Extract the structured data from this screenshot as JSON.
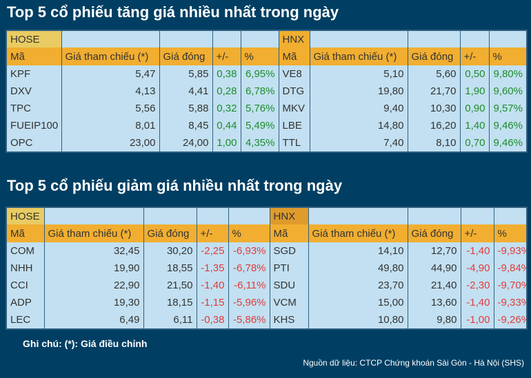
{
  "gainers": {
    "title": "Top 5 cổ phiếu tăng giá nhiều nhất trong ngày",
    "exchanges": [
      {
        "name": "HOSE",
        "headers": [
          "Mã",
          "Giá tham chiếu (*)",
          "Giá đóng",
          "+/-",
          "%"
        ],
        "rows": [
          [
            "KPF",
            "5,47",
            "5,85",
            "0,38",
            "6,95%"
          ],
          [
            "DXV",
            "4,13",
            "4,41",
            "0,28",
            "6,78%"
          ],
          [
            "TPC",
            "5,56",
            "5,88",
            "0,32",
            "5,76%"
          ],
          [
            "FUEIP100",
            "8,01",
            "8,45",
            "0,44",
            "5,49%"
          ],
          [
            "OPC",
            "23,00",
            "24,00",
            "1,00",
            "4,35%"
          ]
        ]
      },
      {
        "name": "HNX",
        "headers": [
          "Mã",
          "Giá tham chiếu (*)",
          "Giá đóng",
          "+/-",
          "%"
        ],
        "rows": [
          [
            "VE8",
            "5,10",
            "5,60",
            "0,50",
            "9,80%"
          ],
          [
            "DTG",
            "19,80",
            "21,70",
            "1,90",
            "9,60%"
          ],
          [
            "MKV",
            "9,40",
            "10,30",
            "0,90",
            "9,57%"
          ],
          [
            "LBE",
            "14,80",
            "16,20",
            "1,40",
            "9,46%"
          ],
          [
            "TTL",
            "7,40",
            "8,10",
            "0,70",
            "9,46%"
          ]
        ]
      }
    ]
  },
  "losers": {
    "title": "Top 5 cổ phiếu giảm giá nhiều nhất trong ngày",
    "exchanges": [
      {
        "name": "HOSE",
        "headers": [
          "Mã",
          "Giá tham chiếu (*)",
          "Giá đóng",
          "+/-",
          "%"
        ],
        "rows": [
          [
            "COM",
            "32,45",
            "30,20",
            "-2,25",
            "-6,93%"
          ],
          [
            "NHH",
            "19,90",
            "18,55",
            "-1,35",
            "-6,78%"
          ],
          [
            "CCI",
            "22,90",
            "21,50",
            "-1,40",
            "-6,11%"
          ],
          [
            "ADP",
            "19,30",
            "18,15",
            "-1,15",
            "-5,96%"
          ],
          [
            "LEC",
            "6,49",
            "6,11",
            "-0,38",
            "-5,86%"
          ]
        ]
      },
      {
        "name": "HNX",
        "headers": [
          "Mã",
          "Giá tham chiếu (*)",
          "Giá đóng",
          "+/-",
          "%"
        ],
        "rows": [
          [
            "SGD",
            "14,10",
            "12,70",
            "-1,40",
            "-9,93%"
          ],
          [
            "PTI",
            "49,80",
            "44,90",
            "-4,90",
            "-9,84%"
          ],
          [
            "SDU",
            "23,70",
            "21,40",
            "-2,30",
            "-9,70%"
          ],
          [
            "VCM",
            "15,00",
            "13,60",
            "-1,40",
            "-9,33%"
          ],
          [
            "KHS",
            "10,80",
            "9,80",
            "-1,00",
            "-9,26%"
          ]
        ]
      }
    ]
  },
  "colors": {
    "background": "#003f63",
    "cell": "#c2e0f1",
    "header": "#f1ae30",
    "up": "#1e8c2c",
    "down": "#e23b3b"
  },
  "note": "Ghi chú: (*): Giá điều chỉnh",
  "source": "Nguồn dữ liệu: CTCP Chứng khoán Sài Gòn - Hà Nội (SHS)"
}
